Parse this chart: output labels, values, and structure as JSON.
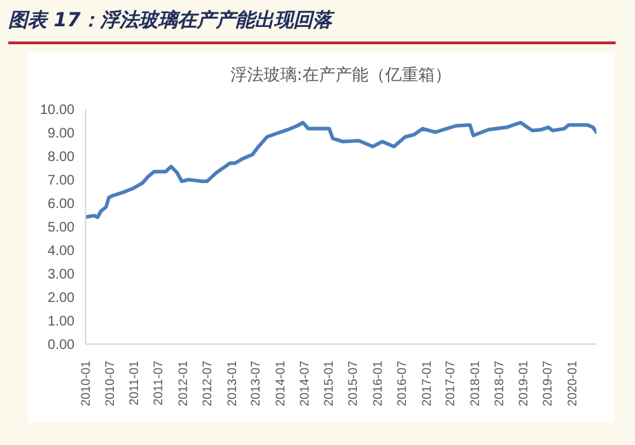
{
  "chart_data": {
    "type": "line",
    "title": "图表 17：浮法玻璃在产产能出现回落",
    "subtitle": "浮法玻璃:在产产能（亿重箱）",
    "x": [
      "2010-01-01",
      "2010-03-06",
      "2010-04-01",
      "2010-04-27",
      "2010-06-03",
      "2010-06-25",
      "2010-07-24",
      "2010-10-19",
      "2010-12-24",
      "2011-03-03",
      "2011-04-16",
      "2011-05-30",
      "2011-08-26",
      "2011-10-05",
      "2011-11-18",
      "2011-12-24",
      "2012-02-13",
      "2012-05-26",
      "2012-07-01",
      "2012-09-09",
      "2012-12-20",
      "2013-01-26",
      "2013-03-18",
      "2013-06-07",
      "2013-07-16",
      "2013-09-24",
      "2013-12-02",
      "2014-02-28",
      "2014-05-08",
      "2014-06-21",
      "2014-07-31",
      "2014-11-14",
      "2015-01-04",
      "2015-01-30",
      "2015-04-16",
      "2015-08-14",
      "2015-11-28",
      "2016-02-06",
      "2016-05-04",
      "2016-07-27",
      "2016-10-04",
      "2016-12-05",
      "2017-03-11",
      "2017-08-11",
      "2017-11-25",
      "2017-12-20",
      "2018-04-13",
      "2018-08-29",
      "2018-12-10",
      "2019-03-08",
      "2019-05-16",
      "2019-07-06",
      "2019-08-08",
      "2019-11-03",
      "2019-12-06",
      "2020-04-23",
      "2020-06-06",
      "2020-07-01"
    ],
    "series": [
      {
        "color": "#4a7ebb",
        "values": [
          5.41,
          5.47,
          5.4,
          5.67,
          5.83,
          6.24,
          6.32,
          6.48,
          6.63,
          6.85,
          7.13,
          7.34,
          7.34,
          7.56,
          7.3,
          6.93,
          7.0,
          6.93,
          6.93,
          7.3,
          7.7,
          7.7,
          7.87,
          8.07,
          8.37,
          8.82,
          8.96,
          9.13,
          9.29,
          9.43,
          9.17,
          9.17,
          9.17,
          8.76,
          8.62,
          8.66,
          8.41,
          8.62,
          8.41,
          8.82,
          8.92,
          9.17,
          9.02,
          9.29,
          9.33,
          8.88,
          9.13,
          9.23,
          9.43,
          9.09,
          9.13,
          9.23,
          9.09,
          9.17,
          9.33,
          9.33,
          9.23,
          9.02
        ]
      }
    ],
    "xlim": [
      "2010-01",
      "2020-07"
    ],
    "xticks": [
      "2010-01",
      "2010-07",
      "2011-01",
      "2011-07",
      "2012-01",
      "2012-07",
      "2013-01",
      "2013-07",
      "2014-01",
      "2014-07",
      "2015-01",
      "2015-07",
      "2016-01",
      "2016-07",
      "2017-01",
      "2017-07",
      "2018-01",
      "2018-07",
      "2019-01",
      "2019-07",
      "2020-01"
    ],
    "ylim": [
      0,
      10
    ],
    "yticks": [
      {
        "value": 0,
        "label": "0.00"
      },
      {
        "value": 1,
        "label": "1.00"
      },
      {
        "value": 2,
        "label": "2.00"
      },
      {
        "value": 3,
        "label": "3.00"
      },
      {
        "value": 4,
        "label": "4.00"
      },
      {
        "value": 5,
        "label": "5.00"
      },
      {
        "value": 6,
        "label": "6.00"
      },
      {
        "value": 7,
        "label": "7.00"
      },
      {
        "value": 8,
        "label": "8.00"
      },
      {
        "value": 9,
        "label": "9.00"
      },
      {
        "value": 10,
        "label": "10.00"
      }
    ],
    "marker": "none",
    "line_style": "solid",
    "grid": false,
    "legend": false
  }
}
